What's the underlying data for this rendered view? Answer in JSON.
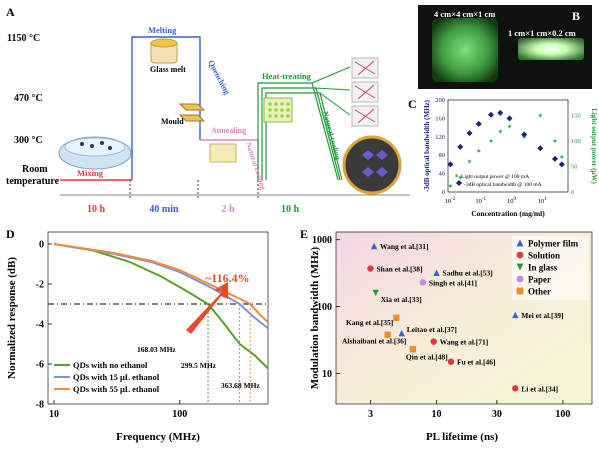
{
  "panelA": {
    "letter": "A",
    "temps": [
      "1150 °C",
      "470 °C",
      "300 °C",
      "Room",
      "temperature"
    ],
    "stages": [
      "Mixing",
      "Melting",
      "Quenching",
      "Mould",
      "Glass melt",
      "Annealing",
      "Natural cooling",
      "Heat-treating",
      "Natural cooling"
    ],
    "times": [
      "10 h",
      "40 min",
      "2 h",
      "10 h"
    ]
  },
  "panelB": {
    "letter": "B",
    "label_big": "4 cm×4 cm×1 cm",
    "label_small": "1 cm×1 cm×0.2 cm"
  },
  "chart_data": [
    {
      "type": "scatter",
      "panel": "C",
      "xlabel": "Concentration (mg/ml)",
      "ylabel_left": "-3dB optical bandwidth (MHz)",
      "ylabel_right": "Light output power (μW)",
      "x_ticks": [
        "10-2",
        "10-1",
        "100",
        "101"
      ],
      "yleft_ticks": [
        0,
        40,
        80,
        120,
        160,
        200
      ],
      "yright_ticks": [
        0,
        50,
        100,
        150
      ],
      "legend": [
        "Light output power @ 100 mA",
        "-3dB optical bandwidth @ 100 mA"
      ],
      "series": [
        {
          "name": "Light output power @ 100 mA",
          "points": [
            [
              0.012,
              12
            ],
            [
              0.025,
              28
            ],
            [
              0.05,
              60
            ],
            [
              0.1,
              80
            ],
            [
              0.25,
              100
            ],
            [
              0.5,
              118
            ],
            [
              1,
              128
            ],
            [
              3,
              108
            ],
            [
              10,
              150
            ],
            [
              30,
              100
            ],
            [
              50,
              68
            ]
          ]
        },
        {
          "name": "-3dB optical bandwidth @ 100 mA",
          "points": [
            [
              0.012,
              60
            ],
            [
              0.025,
              98
            ],
            [
              0.05,
              128
            ],
            [
              0.1,
              148
            ],
            [
              0.25,
              168
            ],
            [
              0.5,
              172
            ],
            [
              1,
              160
            ],
            [
              3,
              125
            ],
            [
              10,
              95
            ],
            [
              30,
              72
            ],
            [
              50,
              60
            ]
          ]
        }
      ]
    },
    {
      "type": "line",
      "panel": "D",
      "xlabel": "Frequency (MHz)",
      "ylabel": "Normalized response (dB)",
      "x_ticks": [
        10,
        100,
        1000
      ],
      "y_ticks": [
        0,
        -2,
        -4,
        -6,
        -8
      ],
      "annotation": "~116.4%",
      "freq_labels": [
        "168.03 MHz",
        "299.5 MHz",
        "363.68 MHz"
      ],
      "series": [
        {
          "name": "QDs with no ethanol",
          "color": "#5aa02c",
          "points": [
            [
              10,
              0
            ],
            [
              20,
              -0.3
            ],
            [
              40,
              -0.9
            ],
            [
              70,
              -1.6
            ],
            [
              110,
              -2.3
            ],
            [
              168,
              -3
            ],
            [
              220,
              -3.9
            ],
            [
              300,
              -5.0
            ],
            [
              400,
              -5.6
            ],
            [
              500,
              -6.2
            ]
          ]
        },
        {
          "name": "QDs with 15 μL ethanol",
          "color": "#7b93d1",
          "points": [
            [
              10,
              0
            ],
            [
              30,
              -0.5
            ],
            [
              60,
              -0.9
            ],
            [
              100,
              -1.4
            ],
            [
              180,
              -2.2
            ],
            [
              299.5,
              -3
            ],
            [
              380,
              -3.6
            ],
            [
              500,
              -4.2
            ]
          ]
        },
        {
          "name": "QDs with 55 μL ethanol",
          "color": "#f28c3c",
          "points": [
            [
              10,
              0
            ],
            [
              30,
              -0.45
            ],
            [
              60,
              -0.85
            ],
            [
              100,
              -1.3
            ],
            [
              200,
              -2.2
            ],
            [
              363.68,
              -3
            ],
            [
              430,
              -3.5
            ],
            [
              500,
              -3.9
            ]
          ]
        }
      ]
    },
    {
      "type": "scatter",
      "panel": "E",
      "xlabel": "PL lifetime (ns)",
      "ylabel": "Modulation bandwidth (MHz)",
      "x_ticks": [
        3,
        10,
        30,
        100
      ],
      "y_ticks": [
        10,
        100,
        1000
      ],
      "legend": [
        "Polymer film",
        "Solution",
        "In glass",
        "Paper",
        "Other"
      ],
      "points": [
        {
          "label": "Wang et al.[31]",
          "type": "Polymer film",
          "x": 3.2,
          "y": 800
        },
        {
          "label": "Shan et al.[38]",
          "type": "Solution",
          "x": 3.0,
          "y": 370
        },
        {
          "label": "Sadhu et al.[53]",
          "type": "Polymer film",
          "x": 10,
          "y": 320
        },
        {
          "label": "Singh et al.[41]",
          "type": "Paper",
          "x": 7.8,
          "y": 230
        },
        {
          "label": "Xia et al.[33]",
          "type": "In glass",
          "x": 3.3,
          "y": 160
        },
        {
          "label": "Mei et al.[39]",
          "type": "Polymer film",
          "x": 42,
          "y": 75
        },
        {
          "label": "Kang et al.[35]",
          "type": "Other",
          "x": 4.8,
          "y": 68
        },
        {
          "label": "Leitao et al.[37]",
          "type": "Polymer film",
          "x": 5.3,
          "y": 40
        },
        {
          "label": "Alshaibani et al.[36]",
          "type": "Other",
          "x": 4.1,
          "y": 38
        },
        {
          "label": "Wang et al.[71]",
          "type": "Solution",
          "x": 9.5,
          "y": 30
        },
        {
          "label": "Qin et al.[48]",
          "type": "Other",
          "x": 6.5,
          "y": 23
        },
        {
          "label": "Fu et al.[46]",
          "type": "Solution",
          "x": 13,
          "y": 15
        },
        {
          "label": "Li et al.[34]",
          "type": "Solution",
          "x": 42,
          "y": 6
        }
      ]
    }
  ],
  "letters": {
    "C": "C",
    "D": "D",
    "E": "E"
  },
  "colors": {
    "red": "#e0393b",
    "blue": "#3b5fcf",
    "pink": "#d88ac4",
    "green": "#1e9b3a",
    "orange": "#f28c28",
    "navy": "#1a237e"
  }
}
